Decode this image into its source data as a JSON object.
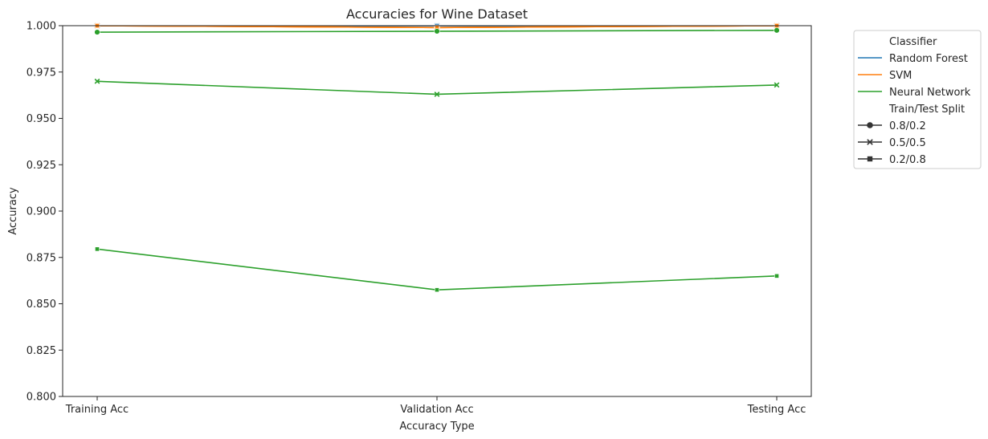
{
  "chart_data": {
    "type": "line",
    "title": "Accuracies for Wine Dataset",
    "xlabel": "Accuracy Type",
    "ylabel": "Accuracy",
    "categories": [
      "Training Acc",
      "Validation Acc",
      "Testing Acc"
    ],
    "ylim": [
      0.8,
      1.0
    ],
    "yticks": [
      "0.800",
      "0.825",
      "0.850",
      "0.875",
      "0.900",
      "0.925",
      "0.950",
      "0.975",
      "1.000"
    ],
    "grid": false,
    "legend_position": "outside-right-top",
    "legend": {
      "hue_title": "Classifier",
      "style_title": "Train/Test Split"
    },
    "classifiers": [
      {
        "name": "Random Forest",
        "color": "#1f77b4"
      },
      {
        "name": "SVM",
        "color": "#ff7f0e"
      },
      {
        "name": "Neural Network",
        "color": "#2ca02c"
      }
    ],
    "splits": [
      {
        "name": "0.8/0.2",
        "marker": "circle"
      },
      {
        "name": "0.5/0.5",
        "marker": "x"
      },
      {
        "name": "0.2/0.8",
        "marker": "square"
      }
    ],
    "series": [
      {
        "classifier": "Random Forest",
        "split": "0.8/0.2",
        "values": [
          1.0,
          1.0,
          1.0
        ]
      },
      {
        "classifier": "Random Forest",
        "split": "0.5/0.5",
        "values": [
          1.0,
          1.0,
          1.0
        ]
      },
      {
        "classifier": "Random Forest",
        "split": "0.2/0.8",
        "values": [
          1.0,
          1.0,
          1.0
        ]
      },
      {
        "classifier": "SVM",
        "split": "0.8/0.2",
        "values": [
          1.0,
          0.999,
          1.0
        ]
      },
      {
        "classifier": "SVM",
        "split": "0.5/0.5",
        "values": [
          1.0,
          0.999,
          1.0
        ]
      },
      {
        "classifier": "SVM",
        "split": "0.2/0.8",
        "values": [
          1.0,
          0.999,
          1.0
        ]
      },
      {
        "classifier": "Neural Network",
        "split": "0.8/0.2",
        "values": [
          0.9965,
          0.997,
          0.9975
        ]
      },
      {
        "classifier": "Neural Network",
        "split": "0.5/0.5",
        "values": [
          0.97,
          0.963,
          0.968
        ]
      },
      {
        "classifier": "Neural Network",
        "split": "0.2/0.8",
        "values": [
          0.8795,
          0.8575,
          0.865
        ]
      }
    ]
  }
}
